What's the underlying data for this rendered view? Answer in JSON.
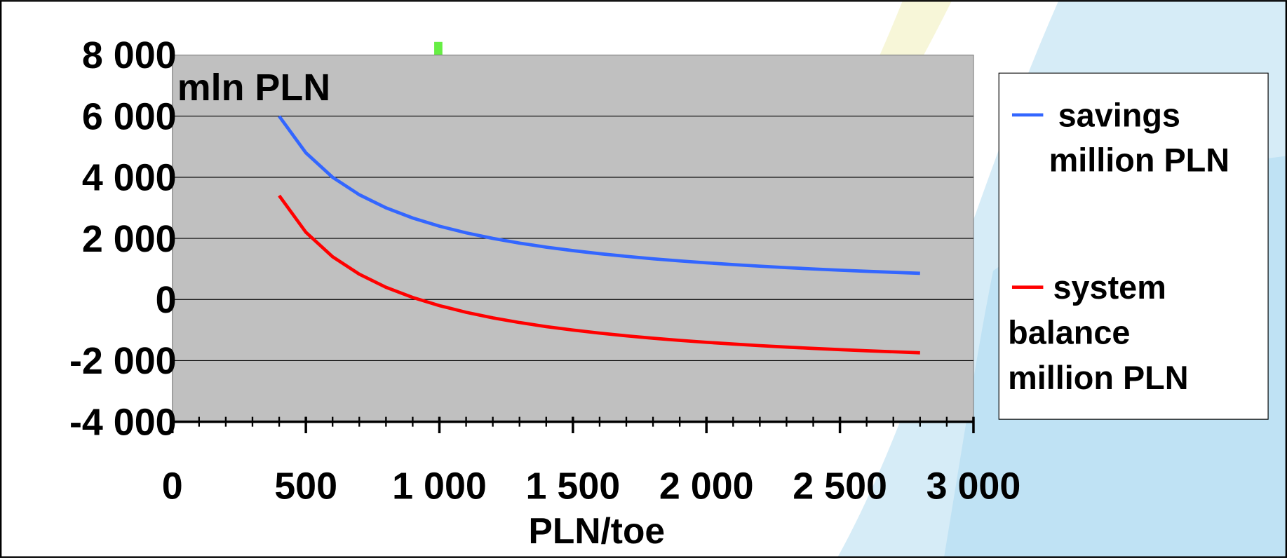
{
  "chart_data": {
    "type": "line",
    "annotation": "mln PLN",
    "x_label": "PLN/toe",
    "x": [
      400,
      500,
      600,
      700,
      800,
      900,
      1000,
      1100,
      1200,
      1300,
      1400,
      1500,
      1600,
      1700,
      1800,
      1900,
      2000,
      2100,
      2200,
      2300,
      2400,
      2500,
      2600,
      2700,
      2800
    ],
    "series": [
      {
        "name": " savings million PLN",
        "color": "#3366ff",
        "values": [
          6000,
          4800,
          4000,
          3429,
          3000,
          2667,
          2400,
          2182,
          2000,
          1846,
          1714,
          1600,
          1500,
          1412,
          1333,
          1263,
          1200,
          1143,
          1091,
          1043,
          1000,
          960,
          923,
          889,
          857
        ]
      },
      {
        "name": "system balance million PLN",
        "color": "#ff0000",
        "values": [
          3400,
          2200,
          1400,
          829,
          400,
          67,
          -200,
          -418,
          -600,
          -754,
          -886,
          -1000,
          -1100,
          -1188,
          -1267,
          -1337,
          -1400,
          -1457,
          -1509,
          -1557,
          -1600,
          -1640,
          -1677,
          -1711,
          -1743
        ]
      }
    ],
    "xlim": [
      0,
      3000
    ],
    "xticks": [
      0,
      500,
      {
        "value": 1000,
        "label": "1 000"
      },
      {
        "value": 1500,
        "label": "1 500"
      },
      {
        "value": 2000,
        "label": "2 000"
      },
      {
        "value": 2500,
        "label": "2 500"
      },
      {
        "value": 3000,
        "label": "3 000"
      }
    ],
    "ylim": [
      -4000,
      8000
    ],
    "yticks": [
      {
        "value": -4000,
        "label": "-4 000"
      },
      {
        "value": -2000,
        "label": "-2 000"
      },
      0,
      {
        "value": 2000,
        "label": "2 000"
      },
      {
        "value": 4000,
        "label": "4 000"
      },
      {
        "value": 6000,
        "label": "6 000"
      },
      {
        "value": 8000,
        "label": "8 000"
      }
    ],
    "grid": true,
    "legend": "right"
  }
}
